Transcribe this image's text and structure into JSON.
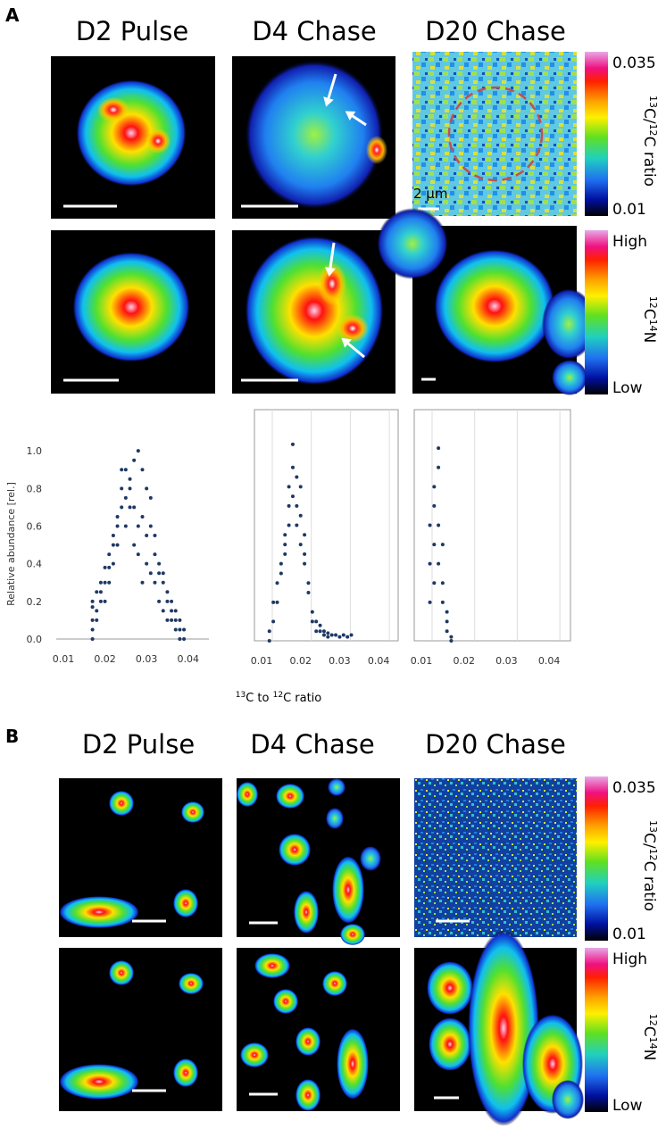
{
  "panel_a": {
    "label": "A",
    "titles": [
      "D2 Pulse",
      "D4 Chase",
      "D20 Chase"
    ],
    "scale_text": "2 µm",
    "colorbar_ratio": {
      "max": "0.035",
      "min": "0.01",
      "label": [
        {
          "text": "13",
          "sup": true
        },
        {
          "text": "C/"
        },
        {
          "text": "12",
          "sup": true
        },
        {
          "text": "C ratio"
        }
      ]
    },
    "colorbar_intensity": {
      "max": "High",
      "min": "Low",
      "label": [
        {
          "text": "12",
          "sup": true
        },
        {
          "text": "C"
        },
        {
          "text": "14",
          "sup": true
        },
        {
          "text": "N"
        }
      ]
    }
  },
  "chart_data": [
    {
      "type": "scatter",
      "ylabel": "Relative abundance [rel.]",
      "color": "#1f3864",
      "grid": false,
      "frame": false,
      "xlim": [
        0.01,
        0.045
      ],
      "ylim": [
        0,
        1.2
      ],
      "xticks": [
        0.01,
        0.02,
        0.03,
        0.04
      ],
      "yticks": [
        {
          "value": 0,
          "label": "0.0"
        },
        0.2,
        0.4,
        0.6,
        0.8,
        {
          "value": 1,
          "label": "1.0"
        }
      ],
      "x": [
        0.017,
        0.017,
        0.017,
        0.017,
        0.017,
        0.018,
        0.018,
        0.018,
        0.019,
        0.019,
        0.019,
        0.02,
        0.02,
        0.02,
        0.021,
        0.021,
        0.021,
        0.022,
        0.022,
        0.022,
        0.023,
        0.023,
        0.023,
        0.024,
        0.024,
        0.024,
        0.025,
        0.025,
        0.025,
        0.026,
        0.026,
        0.026,
        0.027,
        0.027,
        0.027,
        0.028,
        0.028,
        0.028,
        0.029,
        0.029,
        0.029,
        0.03,
        0.03,
        0.03,
        0.031,
        0.031,
        0.031,
        0.032,
        0.032,
        0.032,
        0.033,
        0.033,
        0.033,
        0.034,
        0.034,
        0.034,
        0.035,
        0.035,
        0.035,
        0.036,
        0.036,
        0.036,
        0.037,
        0.037,
        0.037,
        0.038,
        0.038,
        0.038,
        0.039,
        0.039
      ],
      "values": [
        0,
        0.05,
        0.1,
        0.17,
        0.2,
        0.1,
        0.15,
        0.25,
        0.2,
        0.3,
        0.25,
        0.3,
        0.38,
        0.2,
        0.38,
        0.45,
        0.3,
        0.5,
        0.55,
        0.4,
        0.6,
        0.65,
        0.5,
        0.7,
        0.8,
        0.9,
        0.9,
        0.75,
        0.6,
        0.85,
        0.8,
        0.7,
        0.95,
        0.7,
        0.5,
        1,
        0.6,
        0.45,
        0.9,
        0.65,
        0.3,
        0.8,
        0.55,
        0.4,
        0.6,
        0.75,
        0.35,
        0.55,
        0.45,
        0.3,
        0.4,
        0.35,
        0.2,
        0.3,
        0.35,
        0.15,
        0.25,
        0.2,
        0.1,
        0.2,
        0.15,
        0.1,
        0.1,
        0.15,
        0.05,
        0.1,
        0.05,
        0,
        0.05,
        0
      ]
    },
    {
      "type": "scatter",
      "color": "#1f3864",
      "grid": true,
      "frame": true,
      "xlim": [
        0.01,
        0.045
      ],
      "ylim": [
        0,
        1.2
      ],
      "xticks": [
        0.01,
        0.02,
        0.03,
        0.04
      ],
      "x": [
        0.012,
        0.012,
        0.013,
        0.013,
        0.014,
        0.014,
        0.015,
        0.015,
        0.016,
        0.016,
        0.016,
        0.017,
        0.017,
        0.017,
        0.018,
        0.018,
        0.018,
        0.019,
        0.019,
        0.019,
        0.02,
        0.02,
        0.02,
        0.021,
        0.021,
        0.021,
        0.022,
        0.022,
        0.023,
        0.023,
        0.024,
        0.024,
        0.025,
        0.025,
        0.026,
        0.026,
        0.027,
        0.027,
        0.028,
        0.029,
        0.03,
        0.031,
        0.032,
        0.033
      ],
      "values": [
        0,
        0.05,
        0.1,
        0.2,
        0.2,
        0.3,
        0.35,
        0.4,
        0.5,
        0.55,
        0.45,
        0.7,
        0.8,
        0.6,
        0.9,
        1.02,
        0.75,
        0.85,
        0.7,
        0.6,
        0.8,
        0.65,
        0.5,
        0.55,
        0.45,
        0.4,
        0.3,
        0.25,
        0.15,
        0.1,
        0.1,
        0.05,
        0.08,
        0.05,
        0.05,
        0.03,
        0.04,
        0.02,
        0.03,
        0.03,
        0.02,
        0.03,
        0.02,
        0.03
      ]
    },
    {
      "type": "scatter",
      "color": "#1f3864",
      "grid": true,
      "frame": true,
      "xlim": [
        0.01,
        0.045
      ],
      "ylim": [
        0,
        1.2
      ],
      "xticks": [
        0.01,
        0.02,
        0.03,
        0.04
      ],
      "x": [
        0.012,
        0.012,
        0.012,
        0.013,
        0.013,
        0.013,
        0.013,
        0.014,
        0.014,
        0.014,
        0.014,
        0.015,
        0.015,
        0.015,
        0.016,
        0.016,
        0.016,
        0.017,
        0.017
      ],
      "values": [
        0.2,
        0.4,
        0.6,
        0.5,
        0.8,
        0.7,
        0.3,
        1,
        0.9,
        0.6,
        0.4,
        0.5,
        0.3,
        0.2,
        0.15,
        0.1,
        0.05,
        0.02,
        0
      ]
    }
  ],
  "shared_xlabel": [
    {
      "text": "13",
      "sup": true
    },
    {
      "text": "C to "
    },
    {
      "text": "12",
      "sup": true
    },
    {
      "text": "C ratio"
    }
  ],
  "panel_b": {
    "label": "B",
    "titles": [
      "D2 Pulse",
      "D4 Chase",
      "D20 Chase"
    ],
    "colorbar_ratio": {
      "max": "0.035",
      "min": "0.01",
      "label": [
        {
          "text": "13",
          "sup": true
        },
        {
          "text": "C/"
        },
        {
          "text": "12",
          "sup": true
        },
        {
          "text": "C ratio"
        }
      ]
    },
    "colorbar_intensity": {
      "max": "High",
      "min": "Low",
      "label": [
        {
          "text": "12",
          "sup": true
        },
        {
          "text": "C"
        },
        {
          "text": "14",
          "sup": true
        },
        {
          "text": "N"
        }
      ]
    }
  }
}
